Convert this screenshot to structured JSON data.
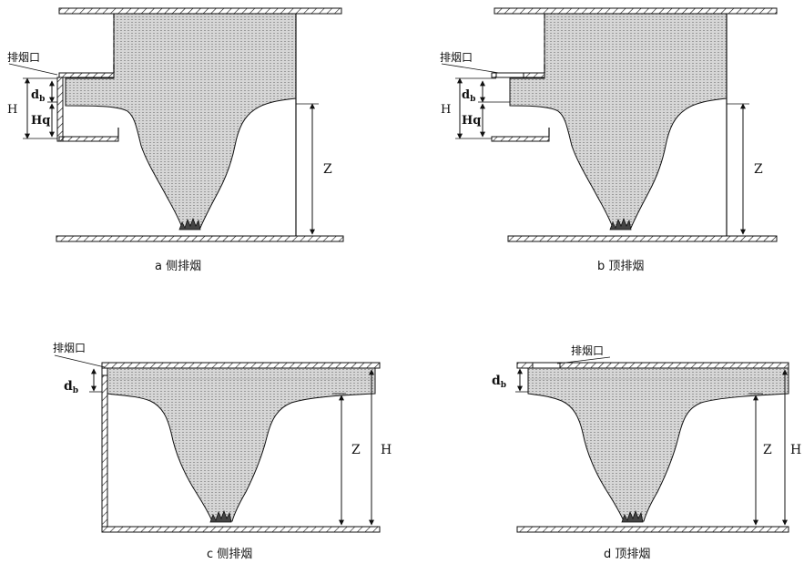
{
  "panels": [
    {
      "id": "a",
      "caption": "a  侧排烟",
      "outlet": "排烟口",
      "labels": {
        "db": "d",
        "db_sub": "b",
        "H": "H",
        "Hq": "Hq",
        "Z": "Z"
      }
    },
    {
      "id": "b",
      "caption": "b  顶排烟",
      "outlet": "排烟口",
      "labels": {
        "db": "d",
        "db_sub": "b",
        "H": "H",
        "Hq": "Hq",
        "Z": "Z"
      }
    },
    {
      "id": "c",
      "caption": "c  侧排烟",
      "outlet": "排烟口",
      "labels": {
        "db": "d",
        "db_sub": "b",
        "H": "H",
        "Z": "Z"
      }
    },
    {
      "id": "d",
      "caption": "d  顶排烟",
      "outlet": "排烟口",
      "labels": {
        "db": "d",
        "db_sub": "b",
        "H": "H",
        "Z": "Z"
      }
    }
  ],
  "colors": {
    "line": "#111111",
    "smoke": "#c9c9c9",
    "fire": "#444444"
  }
}
